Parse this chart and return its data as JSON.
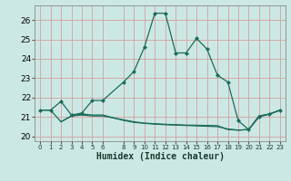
{
  "xlabel": "Humidex (Indice chaleur)",
  "background_color": "#cce8e4",
  "grid_color_major": "#d4a0a0",
  "grid_color_minor": "#d8e8e4",
  "line_color": "#1a6b5a",
  "ylim": [
    19.75,
    26.75
  ],
  "xlim": [
    -0.5,
    23.5
  ],
  "yticks": [
    20,
    21,
    22,
    23,
    24,
    25,
    26
  ],
  "x_ticks": [
    0,
    1,
    2,
    3,
    4,
    5,
    6,
    8,
    9,
    10,
    11,
    12,
    13,
    14,
    15,
    16,
    17,
    18,
    19,
    20,
    21,
    22,
    23
  ],
  "line1_x": [
    0,
    1,
    2,
    3,
    4,
    5,
    6,
    8,
    9,
    10,
    11,
    12,
    13,
    14,
    15,
    16,
    17,
    18,
    19,
    20,
    21,
    22,
    23
  ],
  "line1_y": [
    21.35,
    21.35,
    21.8,
    21.1,
    21.2,
    21.85,
    21.85,
    22.8,
    23.35,
    24.6,
    26.35,
    26.35,
    24.3,
    24.3,
    25.05,
    24.5,
    23.15,
    22.8,
    20.8,
    20.35,
    21.0,
    21.15,
    21.35
  ],
  "line2_x": [
    0,
    1,
    2,
    3,
    4,
    5,
    6,
    8,
    9,
    10,
    11,
    12,
    13,
    14,
    15,
    16,
    17,
    18,
    19,
    20,
    21,
    22,
    23
  ],
  "line2_y": [
    21.35,
    21.35,
    20.75,
    21.05,
    21.1,
    21.05,
    21.05,
    20.85,
    20.75,
    20.68,
    20.65,
    20.62,
    20.6,
    20.58,
    20.57,
    20.56,
    20.55,
    20.35,
    20.32,
    20.35,
    21.05,
    21.15,
    21.35
  ],
  "line3_x": [
    2,
    3,
    4,
    5,
    6,
    8,
    9,
    10,
    11,
    12,
    13,
    14,
    15,
    16,
    17,
    18,
    19,
    20,
    21,
    22,
    23
  ],
  "line3_y": [
    20.75,
    21.05,
    21.15,
    21.1,
    21.1,
    20.82,
    20.72,
    20.67,
    20.63,
    20.6,
    20.58,
    20.56,
    20.54,
    20.52,
    20.5,
    20.38,
    20.32,
    20.35,
    21.05,
    21.15,
    21.35
  ]
}
